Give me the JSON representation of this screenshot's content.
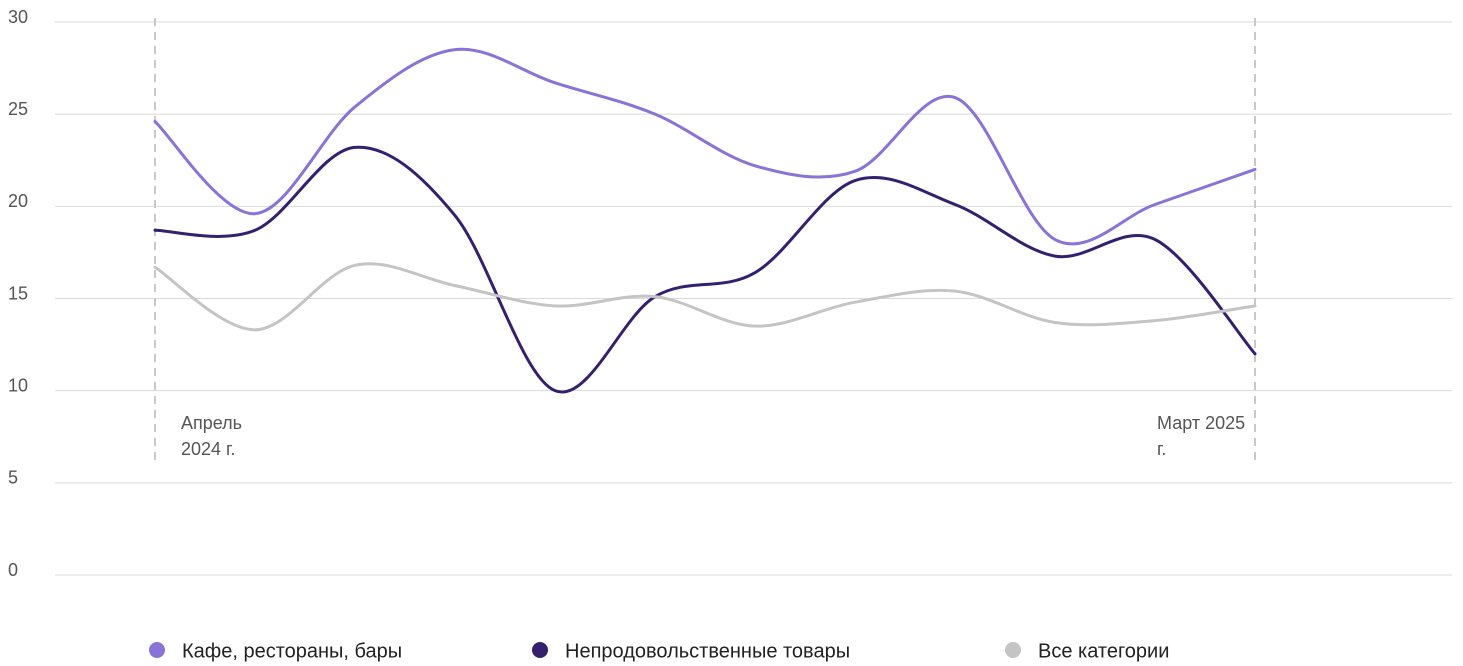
{
  "chart_data": {
    "type": "line",
    "categories": [
      "Апрель 2024 г.",
      null,
      null,
      null,
      null,
      null,
      null,
      null,
      null,
      null,
      null,
      "Март 2025 г."
    ],
    "series": [
      {
        "name": "Кафе, рестораны, бары",
        "color": "#8b72d6",
        "values": [
          24.6,
          19.6,
          25.4,
          28.5,
          26.7,
          25.0,
          22.2,
          21.9,
          25.9,
          18.2,
          20.1,
          22.0
        ]
      },
      {
        "name": "Непродовольственные товары",
        "color": "#35206e",
        "values": [
          18.7,
          18.7,
          23.2,
          19.5,
          10.0,
          15.1,
          16.4,
          21.4,
          20.1,
          17.3,
          18.2,
          12.0
        ]
      },
      {
        "name": "Все категории",
        "color": "#c4c4c4",
        "values": [
          16.7,
          13.3,
          16.8,
          15.7,
          14.6,
          15.1,
          13.5,
          14.8,
          15.4,
          13.7,
          13.8,
          14.6
        ]
      }
    ],
    "ylim": [
      0,
      30
    ],
    "yticks": [
      0,
      5,
      10,
      15,
      20,
      25,
      30
    ],
    "grid": true
  }
}
